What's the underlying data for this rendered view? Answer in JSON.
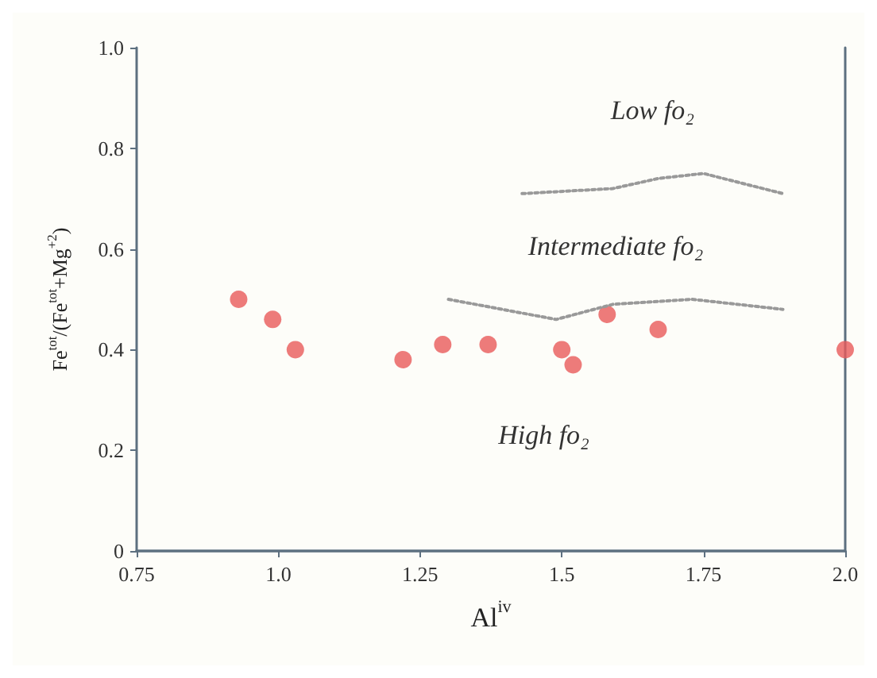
{
  "chart_data": {
    "type": "scatter",
    "xlabel": "Al$^{iv}$",
    "ylabel": "Fe$^{tot}$/(Fe$^{tot}$+Mg$^{+2}$)",
    "xlim": [
      0.75,
      2.0
    ],
    "xticks": [
      0.75,
      {
        "value": 1,
        "label": "1.0"
      },
      1.25,
      1.5,
      1.75,
      {
        "value": 2,
        "label": "2.0"
      }
    ],
    "ylim": [
      0,
      1.0
    ],
    "yticks": [
      0,
      0.2,
      0.4,
      0.6,
      0.8,
      {
        "value": 1,
        "label": "1.0"
      }
    ],
    "grid": false,
    "marker": "circle",
    "series": [
      {
        "color": "#e85a5a",
        "x": [
          0.93,
          0.99,
          1.03,
          1.22,
          1.29,
          1.37,
          1.5,
          1.52,
          1.58,
          1.67,
          2.0
        ],
        "values": [
          0.5,
          0.46,
          0.4,
          0.38,
          0.41,
          0.41,
          0.4,
          0.37,
          0.47,
          0.44,
          0.4
        ]
      },
      {
        "type": "line",
        "color": "#999999",
        "line_style": "dotted",
        "marker": "none",
        "x": [
          1.43,
          1.59,
          1.67,
          1.75,
          1.89
        ],
        "values": [
          0.71,
          0.72,
          0.74,
          0.75,
          0.71
        ]
      },
      {
        "type": "line",
        "color": "#999999",
        "line_style": "dotted",
        "marker": "none",
        "x": [
          1.3,
          1.49,
          1.59,
          1.73,
          1.89
        ],
        "values": [
          0.5,
          0.46,
          0.49,
          0.5,
          0.48
        ]
      }
    ],
    "annotations": [
      "Low fo₂",
      "Intermediate fo₂",
      "High fo₂"
    ]
  }
}
